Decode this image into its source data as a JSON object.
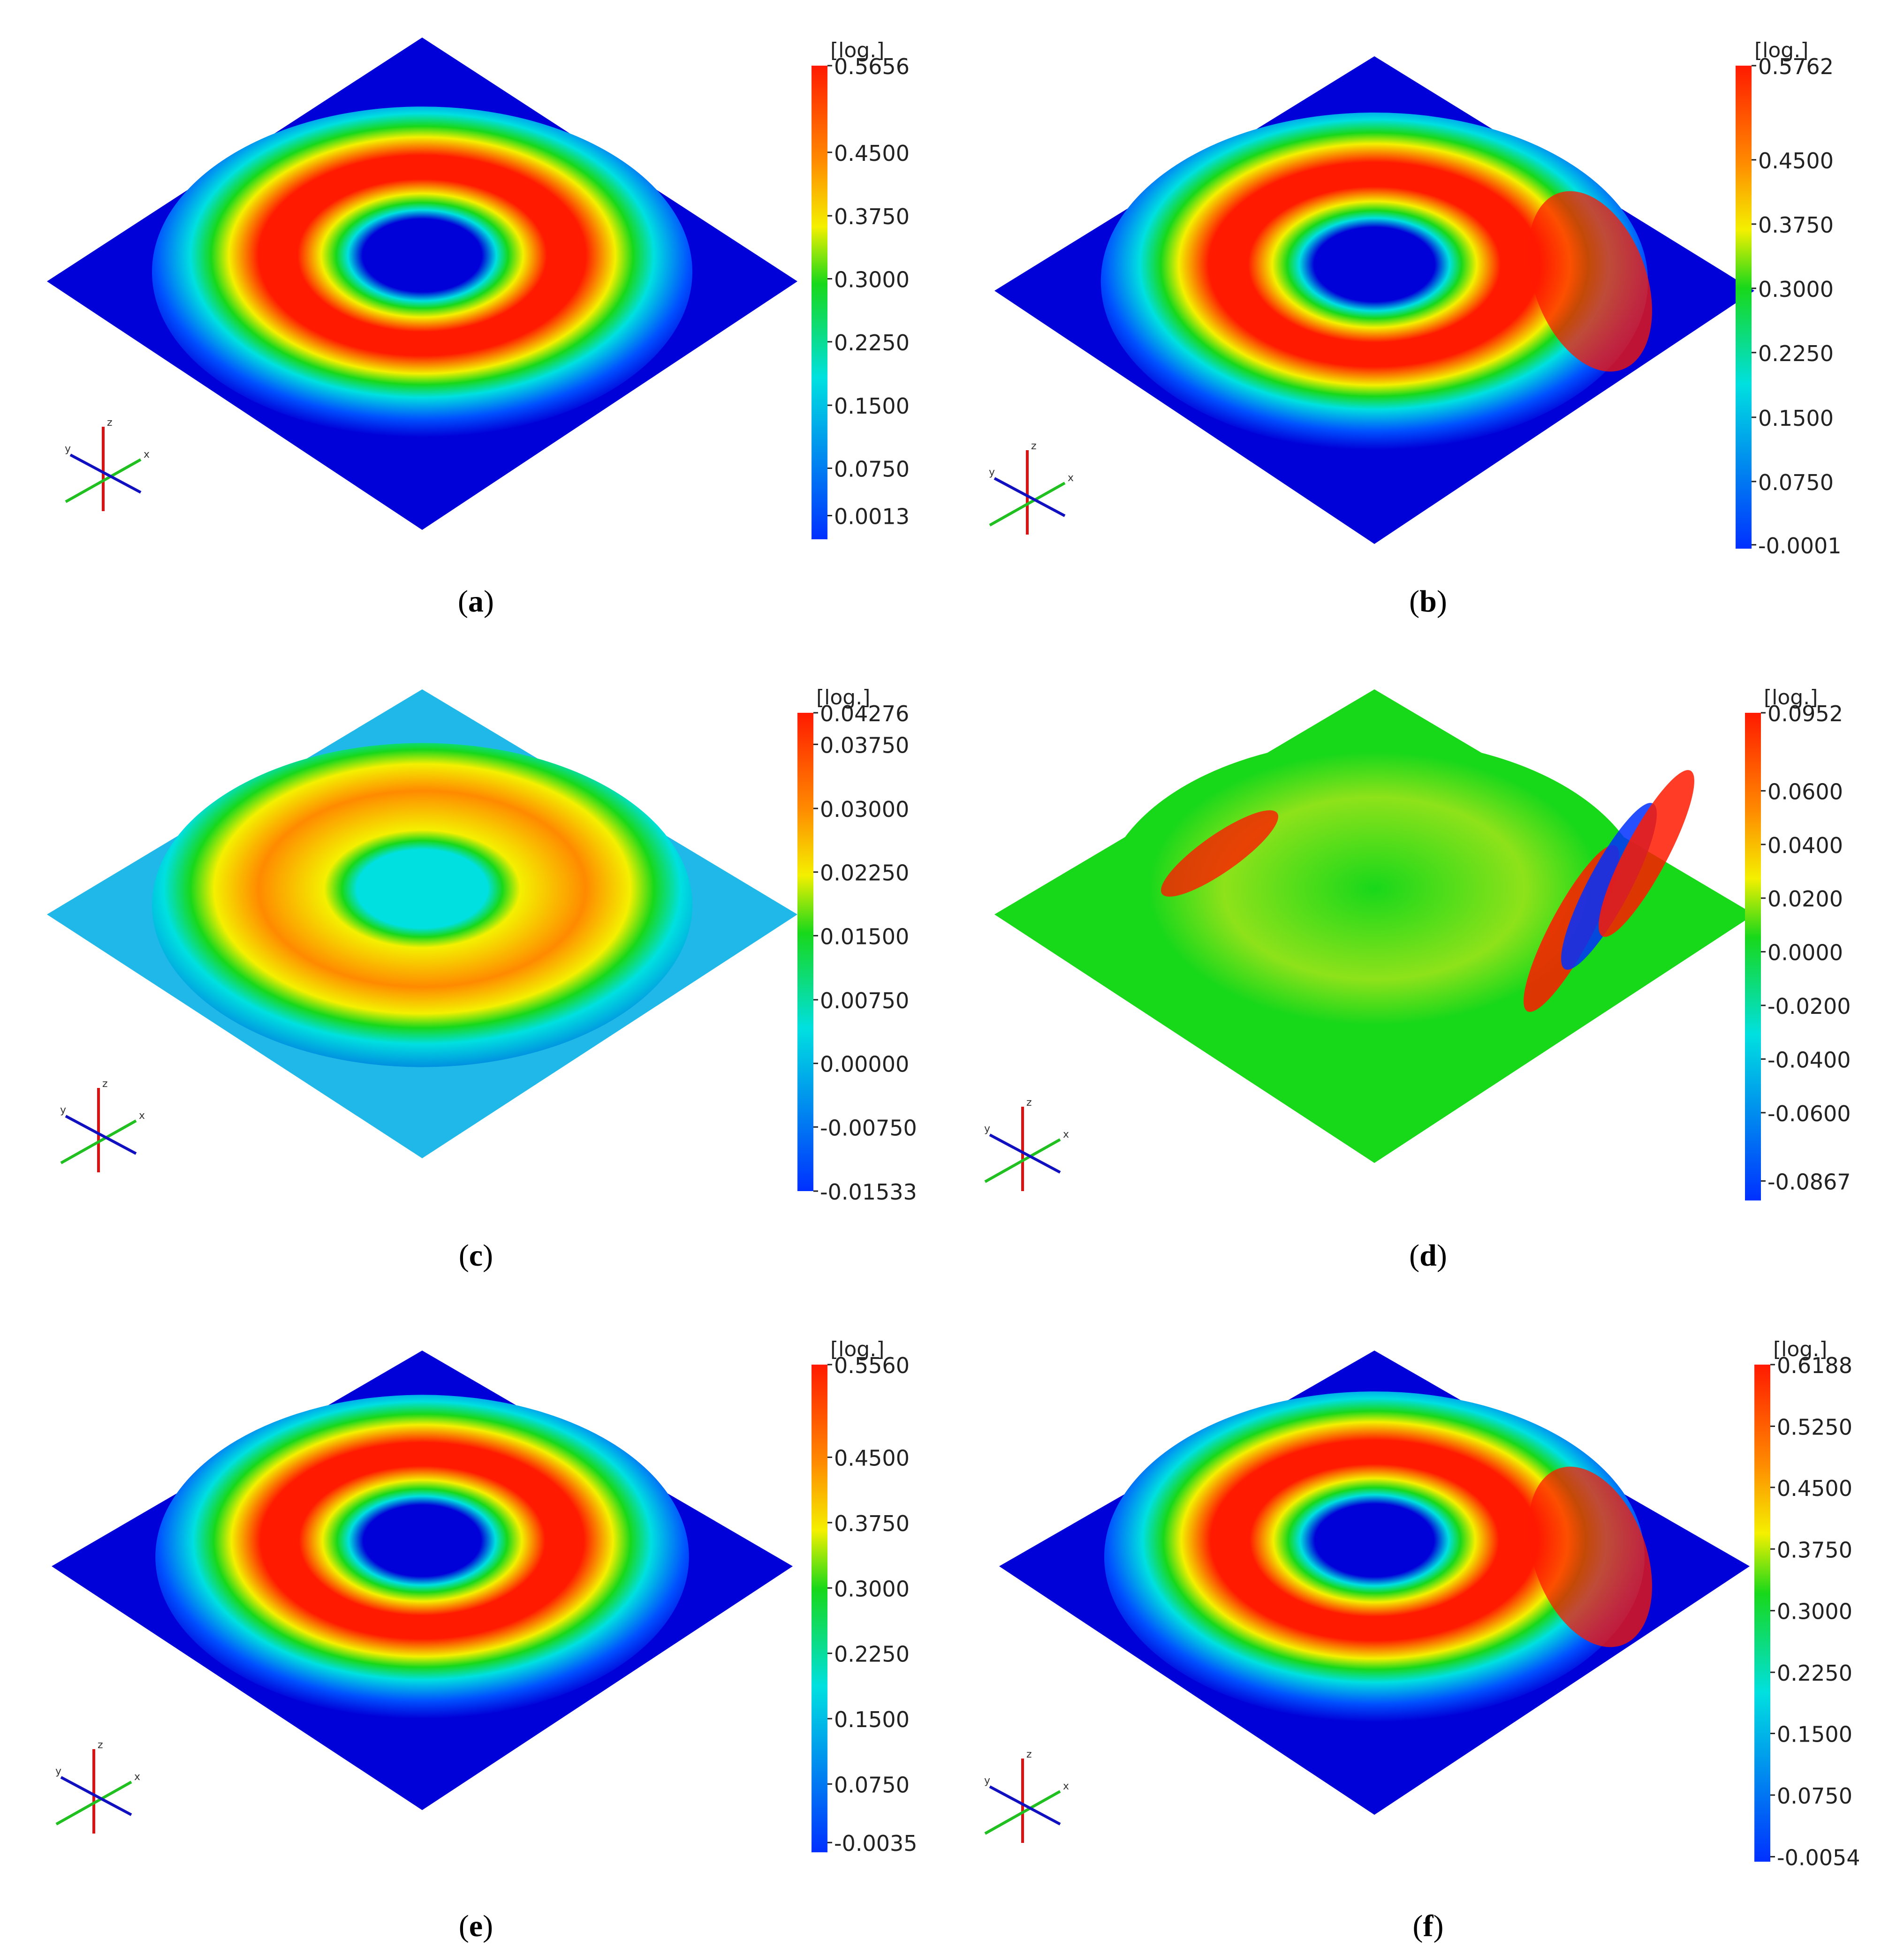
{
  "panels": [
    {
      "label": "a",
      "unit": "[log.]",
      "ticks": [
        "0.5656",
        "0.4500",
        "0.3750",
        "0.3000",
        "0.2250",
        "0.1500",
        "0.0750",
        "0.0013"
      ],
      "tick_positions": [
        0.0,
        0.183,
        0.317,
        0.45,
        0.583,
        0.717,
        0.85,
        0.95
      ],
      "pattern": "cone"
    },
    {
      "label": "b",
      "unit": "[log.]",
      "ticks": [
        "0.5762",
        "0.4500",
        "0.3750",
        "0.3000",
        "0.2250",
        "0.1500",
        "0.0750",
        "-0.0001"
      ],
      "tick_positions": [
        0.0,
        0.195,
        0.328,
        0.461,
        0.594,
        0.728,
        0.861,
        0.992
      ],
      "pattern": "cone-defect"
    },
    {
      "label": "c",
      "unit": "[log.]",
      "ticks": [
        "0.04276",
        "0.03750",
        "0.03000",
        "0.02250",
        "0.01500",
        "0.00750",
        "0.00000",
        "-0.00750",
        "-0.01533"
      ],
      "tick_positions": [
        0.0,
        0.066,
        0.2,
        0.333,
        0.466,
        0.6,
        0.733,
        0.866,
        1.0
      ],
      "pattern": "cone-mid"
    },
    {
      "label": "d",
      "unit": "[log.]",
      "ticks": [
        "0.0952",
        "0.0600",
        "0.0400",
        "0.0200",
        "0.0000",
        "-0.0200",
        "-0.0400",
        "-0.0600",
        "-0.0867"
      ],
      "tick_positions": [
        0.0,
        0.16,
        0.27,
        0.38,
        0.49,
        0.6,
        0.71,
        0.82,
        0.96
      ],
      "pattern": "wrinkle"
    },
    {
      "label": "e",
      "unit": "[log.]",
      "ticks": [
        "0.5560",
        "0.4500",
        "0.3750",
        "0.3000",
        "0.2250",
        "0.1500",
        "0.0750",
        "-0.0035"
      ],
      "tick_positions": [
        0.0,
        0.19,
        0.324,
        0.458,
        0.592,
        0.726,
        0.86,
        0.98
      ],
      "pattern": "cone"
    },
    {
      "label": "f",
      "unit": "[log.]",
      "ticks": [
        "0.6188",
        "0.5250",
        "0.4500",
        "0.3750",
        "0.3000",
        "0.2250",
        "0.1500",
        "0.0750",
        "-0.0054"
      ],
      "tick_positions": [
        0.0,
        0.124,
        0.247,
        0.371,
        0.495,
        0.619,
        0.742,
        0.866,
        0.99
      ],
      "pattern": "cone-defect"
    }
  ],
  "axis_labels": {
    "x": "x",
    "y": "y",
    "z": "z"
  },
  "colors": {
    "red": "#ff1a00",
    "orange": "#ff8a00",
    "yellow": "#f4f000",
    "green": "#18d81a",
    "cyan": "#00e0e0",
    "blue": "#0030ff",
    "deepblue": "#0000d8"
  }
}
